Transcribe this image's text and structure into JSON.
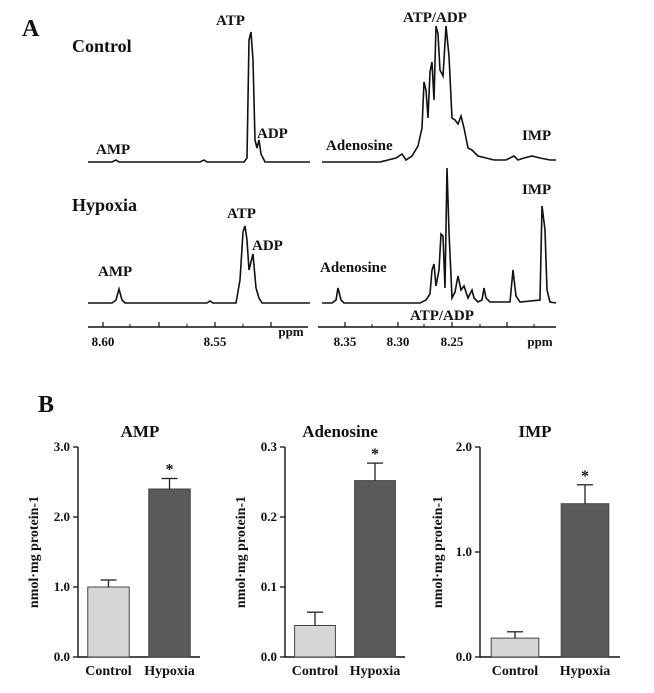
{
  "panels": {
    "a": "A",
    "b": "B"
  },
  "spectra": {
    "conditions": [
      "Control",
      "Hypoxia"
    ],
    "control_labels": {
      "amp": "AMP",
      "atp": "ATP",
      "adp": "ADP",
      "atp_adp": "ATP/ADP",
      "adenosine": "Adenosine",
      "imp": "IMP"
    },
    "hypoxia_labels": {
      "amp": "AMP",
      "atp": "ATP",
      "adp": "ADP",
      "adenosine": "Adenosine",
      "atp_adp": "ATP/ADP",
      "imp": "IMP"
    },
    "left_axis_ticks": [
      "8.60",
      "8.55",
      "ppm"
    ],
    "right_axis_ticks": [
      "8.35",
      "8.30",
      "8.25",
      "ppm"
    ]
  },
  "chart_data": [
    {
      "type": "bar",
      "title": "AMP",
      "ylabel": "nmol·mg protein-1",
      "categories": [
        "Control",
        "Hypoxia"
      ],
      "values": [
        1.0,
        2.4
      ],
      "errors": [
        0.1,
        0.15
      ],
      "significance": [
        "",
        "*"
      ],
      "ylim": [
        0,
        3.0
      ],
      "yticks": [
        "0.0",
        "1.0",
        "2.0",
        "3.0"
      ],
      "colors": [
        "#d6d6d6",
        "#5a5a5a"
      ]
    },
    {
      "type": "bar",
      "title": "Adenosine",
      "ylabel": "nmol·mg protein-1",
      "categories": [
        "Control",
        "Hypoxia"
      ],
      "values": [
        0.045,
        0.252
      ],
      "errors": [
        0.019,
        0.025
      ],
      "significance": [
        "",
        "*"
      ],
      "ylim": [
        0,
        0.3
      ],
      "yticks": [
        "0.0",
        "0.1",
        "0.2",
        "0.3"
      ],
      "colors": [
        "#d6d6d6",
        "#5a5a5a"
      ]
    },
    {
      "type": "bar",
      "title": "IMP",
      "ylabel": "nmol·mg protein-1",
      "categories": [
        "Control",
        "Hypoxia"
      ],
      "values": [
        0.18,
        1.46
      ],
      "errors": [
        0.06,
        0.18
      ],
      "significance": [
        "",
        "*"
      ],
      "ylim": [
        0,
        2.0
      ],
      "yticks": [
        "0.0",
        "1.0",
        "2.0"
      ],
      "colors": [
        "#d6d6d6",
        "#5a5a5a"
      ]
    }
  ]
}
